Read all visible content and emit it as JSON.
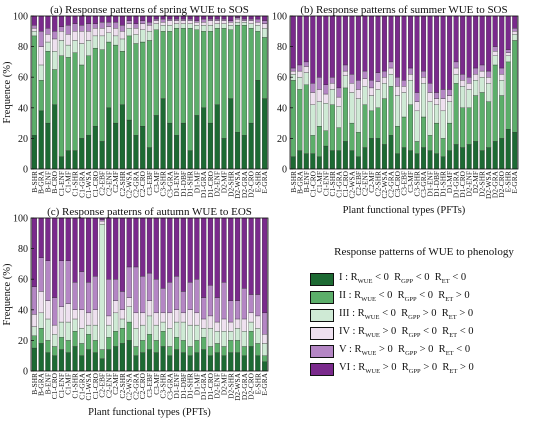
{
  "figure": {
    "legend_title": "Response patterns of WUE to phenology",
    "classes": [
      {
        "name": "I",
        "colour": "#1d6a33"
      },
      {
        "name": "II",
        "colour": "#5cae6a"
      },
      {
        "name": "III",
        "colour": "#cfead5"
      },
      {
        "name": "IV",
        "colour": "#eee0ef"
      },
      {
        "name": "V",
        "colour": "#b486c4"
      },
      {
        "name": "VI",
        "colour": "#7a2a8c"
      }
    ]
  },
  "chart_data": [
    {
      "type": "bar",
      "stacked": true,
      "title": "(a) Response patterns of spring WUE to SOS",
      "ylabel": "Frequence (%)",
      "xlabel": "",
      "ylim": [
        0,
        100
      ],
      "yticks": [
        0,
        20,
        40,
        60,
        80,
        100
      ],
      "categories": [
        "B-SHR",
        "B-GRA",
        "B-ENF",
        "B-CRO",
        "C1-ENF",
        "C1-MF",
        "C1-SHR",
        "C1-GRA",
        "C1-WSA",
        "C1-CRO",
        "C2-EBF",
        "C2-ENF",
        "C2-MF",
        "C2-SHR",
        "C2-WSA",
        "C2-GRA",
        "C2-CRO",
        "C3-EBF",
        "C3-MF",
        "C3-SHR",
        "C3-GRA",
        "D1-ENF",
        "D1-DBF",
        "D1-SHR",
        "D1-MF",
        "D1-GRA",
        "D1-CRO",
        "D2-ENF",
        "D2-MF",
        "D2-SHR",
        "D2-WSA",
        "D2-GRA",
        "D2-CRO",
        "E-SHR",
        "E-GRA"
      ],
      "series": [
        {
          "name": "I",
          "values": [
            22,
            38,
            30,
            42,
            8,
            12,
            12,
            20,
            22,
            28,
            18,
            40,
            30,
            42,
            32,
            22,
            28,
            14,
            35,
            46,
            30,
            22,
            30,
            12,
            35,
            40,
            30,
            42,
            20,
            46,
            24,
            22,
            30,
            58,
            46
          ]
        },
        {
          "name": "II",
          "values": [
            65,
            20,
            47,
            23,
            66,
            61,
            64,
            48,
            52,
            51,
            60,
            43,
            51,
            35,
            55,
            60,
            55,
            70,
            56,
            44,
            60,
            70,
            62,
            80,
            56,
            50,
            60,
            50,
            72,
            45,
            70,
            72,
            62,
            32,
            40
          ]
        },
        {
          "name": "III",
          "values": [
            3,
            10,
            6,
            12,
            10,
            8,
            8,
            14,
            10,
            8,
            9,
            6,
            6,
            8,
            5,
            6,
            8,
            6,
            4,
            4,
            4,
            3,
            3,
            3,
            3,
            4,
            4,
            3,
            3,
            3,
            2,
            2,
            3,
            4,
            6
          ]
        },
        {
          "name": "IV",
          "values": [
            2,
            12,
            5,
            8,
            6,
            7,
            6,
            8,
            6,
            5,
            5,
            4,
            5,
            5,
            3,
            4,
            4,
            4,
            2,
            2,
            3,
            2,
            2,
            2,
            2,
            2,
            3,
            2,
            2,
            2,
            2,
            1,
            2,
            2,
            3
          ]
        },
        {
          "name": "V",
          "values": [
            2,
            10,
            4,
            5,
            3,
            6,
            5,
            4,
            5,
            3,
            4,
            3,
            4,
            4,
            2,
            3,
            2,
            2,
            1,
            2,
            1,
            1,
            1,
            1,
            1,
            2,
            1,
            1,
            1,
            1,
            1,
            1,
            1,
            2,
            2
          ]
        },
        {
          "name": "VI",
          "values": [
            6,
            10,
            8,
            10,
            7,
            6,
            5,
            6,
            5,
            5,
            4,
            4,
            4,
            6,
            3,
            5,
            3,
            4,
            2,
            2,
            2,
            2,
            2,
            2,
            3,
            2,
            2,
            2,
            2,
            3,
            1,
            2,
            2,
            2,
            3
          ]
        }
      ]
    },
    {
      "type": "bar",
      "stacked": true,
      "title": "(b) Response patterns of summer WUE to SOS",
      "ylabel": "",
      "xlabel": "Plant functional types (PFTs)",
      "ylim": [
        0,
        100
      ],
      "yticks": [
        0,
        20,
        40,
        60,
        80,
        100
      ],
      "categories": [
        "B-SHR",
        "B-GRA",
        "B-ENF",
        "C1-CRO",
        "C1-MF",
        "C1-ENF",
        "C1-SHR",
        "C1-GRA",
        "C1-CRO",
        "C2-WSA",
        "C2-EBF",
        "C2-ENF",
        "C2-MF",
        "C2-SHR",
        "C2-WSA",
        "C2-GRA",
        "C3-CRO",
        "C3-EBF",
        "C3-MF",
        "C3-SHR",
        "C3-GRA",
        "D1-ENF",
        "D1-DBF",
        "D1-SHR",
        "D1-MF",
        "D1-GRA",
        "D1-CRO",
        "D2-ENF",
        "D2-MF",
        "D2-SHR",
        "D2-WSA",
        "D2-GRA",
        "D2-CRO",
        "E-SHR",
        "E-GRA"
      ],
      "series": [
        {
          "name": "I",
          "values": [
            8,
            12,
            10,
            10,
            8,
            15,
            12,
            12,
            18,
            12,
            8,
            14,
            20,
            20,
            16,
            22,
            10,
            14,
            12,
            10,
            14,
            12,
            10,
            8,
            12,
            16,
            14,
            16,
            18,
            12,
            14,
            18,
            20,
            26,
            24
          ]
        },
        {
          "name": "II",
          "values": [
            50,
            40,
            45,
            12,
            20,
            10,
            30,
            15,
            35,
            18,
            16,
            28,
            18,
            20,
            30,
            32,
            18,
            20,
            30,
            8,
            20,
            10,
            20,
            12,
            18,
            40,
            26,
            24,
            30,
            38,
            30,
            50,
            28,
            44,
            60
          ]
        },
        {
          "name": "III",
          "values": [
            4,
            8,
            8,
            20,
            16,
            18,
            10,
            14,
            8,
            20,
            22,
            12,
            10,
            12,
            10,
            8,
            20,
            16,
            16,
            20,
            22,
            22,
            12,
            18,
            14,
            6,
            14,
            12,
            10,
            10,
            12,
            6,
            10,
            4,
            4
          ]
        },
        {
          "name": "IV",
          "values": [
            2,
            4,
            4,
            8,
            8,
            6,
            4,
            6,
            3,
            6,
            6,
            5,
            5,
            5,
            4,
            4,
            6,
            4,
            4,
            6,
            4,
            6,
            4,
            8,
            4,
            4,
            4,
            4,
            4,
            4,
            4,
            3,
            4,
            2,
            2
          ]
        },
        {
          "name": "V",
          "values": [
            2,
            4,
            3,
            6,
            8,
            6,
            4,
            6,
            4,
            6,
            6,
            5,
            5,
            6,
            4,
            4,
            6,
            4,
            4,
            6,
            4,
            6,
            4,
            6,
            4,
            4,
            4,
            4,
            4,
            4,
            4,
            3,
            4,
            2,
            2
          ]
        },
        {
          "name": "VI",
          "values": [
            34,
            32,
            30,
            44,
            40,
            45,
            40,
            47,
            32,
            38,
            42,
            36,
            42,
            37,
            36,
            30,
            40,
            42,
            34,
            50,
            36,
            44,
            50,
            48,
            48,
            30,
            38,
            40,
            34,
            32,
            36,
            20,
            34,
            22,
            8
          ]
        }
      ]
    },
    {
      "type": "bar",
      "stacked": true,
      "title": "(c) Response patterns of autumn WUE to EOS",
      "ylabel": "Frequence (%)",
      "xlabel": "Plant functional types (PFTs)",
      "ylim": [
        0,
        100
      ],
      "yticks": [
        0,
        20,
        40,
        60,
        80,
        100
      ],
      "categories": [
        "B-SHR",
        "B-GRA",
        "B-ENF",
        "C1-CRO",
        "C1-ENF",
        "C1-MF",
        "C1-SHR",
        "C1-GRA",
        "C1-WSA",
        "C1-CRO",
        "C2-EBF",
        "C2-ENF",
        "C2-MF",
        "C2-SHR",
        "C2-WSA",
        "C2-GRA",
        "C2-CRO",
        "C3-EBF",
        "C3-MF",
        "C3-SHR",
        "C3-GRA",
        "D1-ENF",
        "D1-DBF",
        "D1-SHR",
        "D1-MF",
        "D1-GRA",
        "D1-CRO",
        "D2-ENF",
        "D2-MF",
        "D2-SHR",
        "D2-WSA",
        "D2-GRA",
        "D2-CRO",
        "E-SHR",
        "E-GRA"
      ],
      "series": [
        {
          "name": "I",
          "values": [
            15,
            18,
            12,
            10,
            14,
            12,
            16,
            10,
            14,
            12,
            8,
            14,
            16,
            18,
            20,
            10,
            12,
            14,
            12,
            16,
            10,
            14,
            12,
            10,
            12,
            14,
            10,
            12,
            10,
            12,
            12,
            10,
            16,
            10,
            6
          ]
        },
        {
          "name": "II",
          "values": [
            8,
            10,
            8,
            6,
            8,
            8,
            10,
            8,
            10,
            8,
            6,
            8,
            10,
            10,
            12,
            6,
            8,
            10,
            8,
            10,
            6,
            8,
            8,
            6,
            8,
            8,
            6,
            6,
            6,
            8,
            8,
            6,
            10,
            8,
            4
          ]
        },
        {
          "name": "III",
          "values": [
            6,
            10,
            14,
            8,
            10,
            12,
            8,
            10,
            6,
            10,
            82,
            8,
            12,
            6,
            10,
            12,
            10,
            12,
            10,
            6,
            12,
            10,
            12,
            14,
            10,
            6,
            12,
            8,
            10,
            6,
            8,
            10,
            6,
            10,
            8
          ]
        },
        {
          "name": "IV",
          "values": [
            8,
            14,
            12,
            6,
            10,
            12,
            6,
            12,
            8,
            10,
            2,
            6,
            8,
            6,
            6,
            10,
            8,
            10,
            8,
            6,
            10,
            8,
            6,
            10,
            8,
            6,
            8,
            6,
            8,
            6,
            6,
            8,
            6,
            8,
            6
          ]
        },
        {
          "name": "V",
          "values": [
            18,
            22,
            26,
            18,
            30,
            28,
            18,
            25,
            20,
            22,
            1,
            24,
            14,
            12,
            20,
            30,
            24,
            18,
            22,
            16,
            20,
            22,
            14,
            18,
            22,
            14,
            20,
            16,
            24,
            14,
            12,
            20,
            12,
            14,
            14
          ]
        },
        {
          "name": "VI",
          "values": [
            45,
            26,
            28,
            52,
            28,
            28,
            42,
            35,
            42,
            38,
            1,
            40,
            40,
            48,
            32,
            32,
            38,
            36,
            40,
            46,
            42,
            38,
            48,
            42,
            40,
            52,
            44,
            52,
            42,
            54,
            54,
            46,
            50,
            50,
            62
          ]
        }
      ]
    }
  ]
}
